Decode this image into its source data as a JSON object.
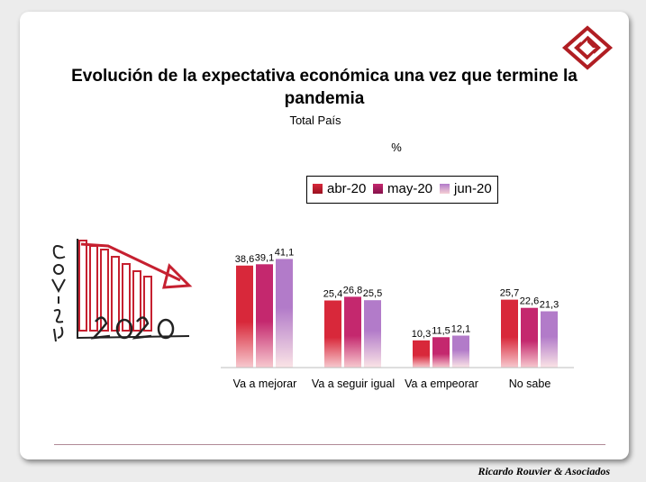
{
  "title": "Evolución de la expectativa económica una vez que termine la pandemia",
  "subtitle": "Total País",
  "unit": "%",
  "credit": "Ricardo Rouvier & Asociados",
  "covid_graphic": {
    "icon": "declining-chart-covid-icon"
  },
  "logo": {
    "icon": "rra-logo-icon",
    "color": "#b01e23"
  },
  "chart_data": {
    "type": "bar",
    "categories": [
      "Va a mejorar",
      "Va a seguir igual",
      "Va a empeorar",
      "No sabe"
    ],
    "series": [
      {
        "name": "abr-20",
        "values": [
          38.6,
          25.4,
          10.3,
          25.7
        ],
        "labels": [
          "38,6",
          "25,4",
          "10,3",
          "25,7"
        ],
        "color": "#d8283a"
      },
      {
        "name": "may-20",
        "values": [
          39.1,
          26.8,
          11.5,
          22.6
        ],
        "labels": [
          "39,1",
          "26,8",
          "11,5",
          "22,6"
        ],
        "color": "#c4286e"
      },
      {
        "name": "jun-20",
        "values": [
          41.1,
          25.5,
          12.1,
          21.3
        ],
        "labels": [
          "41,1",
          "25,5",
          "12,1",
          "21,3"
        ],
        "color": "#b27bc9"
      }
    ],
    "ylim": [
      0,
      45
    ],
    "legend_position": "top",
    "grid": false
  }
}
